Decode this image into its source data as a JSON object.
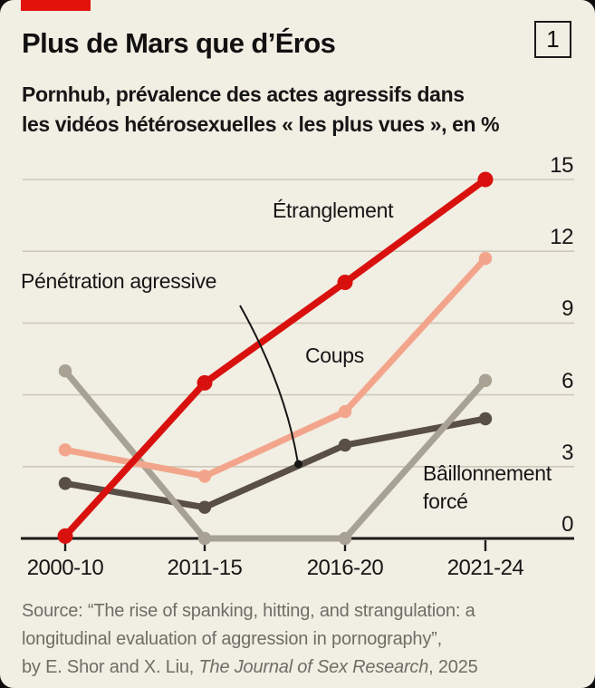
{
  "card": {
    "tag_color": "#e3120b",
    "index_label": "1"
  },
  "header": {
    "title": "Plus de Mars que d’Éros",
    "subtitle_line1": "Pornhub, prévalence des actes agressifs dans",
    "subtitle_line2": "les vidéos hétérosexuelles « les plus vues », en %"
  },
  "chart_data": {
    "type": "line",
    "title": "Plus de Mars que d’Éros",
    "subtitle": "Pornhub, prévalence des actes agressifs dans les vidéos hétérosexuelles « les plus vues », en %",
    "unit": "%",
    "categories": [
      "2000-10",
      "2011-15",
      "2016-20",
      "2021-24"
    ],
    "series": [
      {
        "name": "Étranglement",
        "color": "#d9110e",
        "values": [
          0.1,
          6.5,
          10.7,
          15.0
        ],
        "z": 4,
        "width": 7.5,
        "dot_r": 8.5
      },
      {
        "name": "Coups",
        "color": "#f3a58c",
        "values": [
          3.7,
          2.6,
          5.3,
          11.7
        ],
        "z": 3,
        "width": 7,
        "dot_r": 7.2
      },
      {
        "name": "Bâillonnement forcé",
        "color": "#a8a294",
        "values": [
          7.0,
          0,
          0,
          6.6
        ],
        "z": 2,
        "width": 7,
        "dot_r": 7.2
      },
      {
        "name": "Pénétration agressive",
        "color": "#594f47",
        "values": [
          2.3,
          1.3,
          3.9,
          5.0
        ],
        "z": 1,
        "width": 7,
        "dot_r": 7.2
      }
    ],
    "yticks": [
      0,
      3,
      6,
      9,
      12,
      15
    ],
    "ylim": [
      0,
      15.5
    ],
    "grid": true,
    "legend_position": "none",
    "annotations": [
      {
        "text": "Étranglement",
        "series": "Étranglement"
      },
      {
        "text": "Pénétration agressive",
        "series": "Pénétration agressive",
        "pointer": "curved arrow to line"
      },
      {
        "text": "Coups",
        "series": "Coups"
      },
      {
        "text": "Bâillonnement forcé",
        "series": "Bâillonnement forcé",
        "lines": [
          "Bâillonnement",
          "forcé"
        ]
      }
    ]
  },
  "colors": {
    "background": "#f1eee3",
    "outside": "#0d0d0d",
    "grid": "#ccc8ba",
    "axis": "#1a1a1a",
    "accent_red": "#e3120b",
    "text": "#161616",
    "source_text": "#6f6d66"
  },
  "source": {
    "line1": "Source: “The rise of spanking, hitting, and strangulation: a",
    "line2": "longitudinal evaluation of aggression in pornography”,",
    "line3_prefix": "by E. Shor and X. Liu, ",
    "line3_journal": "The Journal of Sex Research",
    "line3_suffix": ", 2025"
  }
}
